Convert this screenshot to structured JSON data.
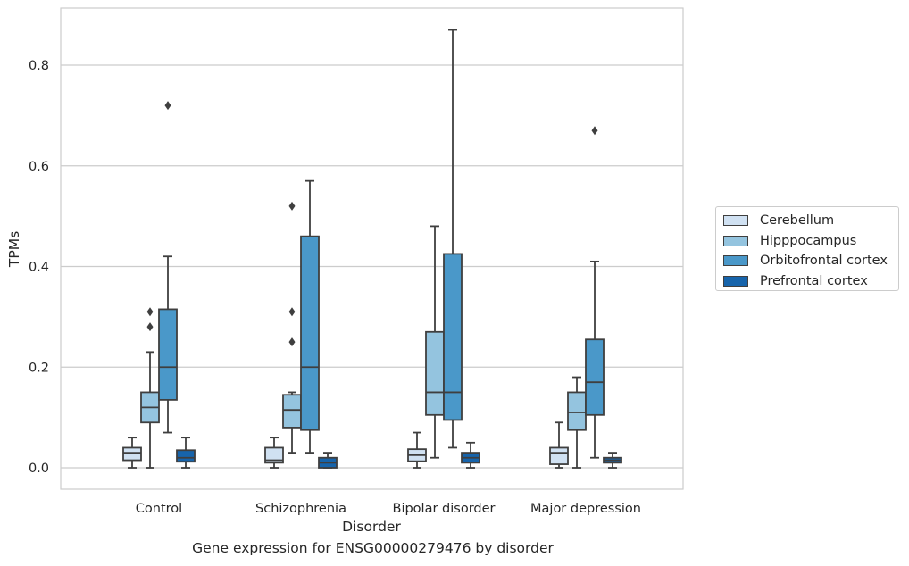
{
  "chart_data": {
    "type": "box",
    "title": "Gene expression for ENSG00000279476 by disorder",
    "xlabel": "Disorder",
    "ylabel": "TPMs",
    "ylim": [
      -0.042,
      0.92
    ],
    "yticks": [
      "0.0",
      "0.2",
      "0.4",
      "0.6",
      "0.8"
    ],
    "categories": [
      "Control",
      "Schizophrenia",
      "Bipolar disorder",
      "Major depression"
    ],
    "grid": "horizontal",
    "legend_position": "right",
    "series": [
      {
        "name": "Cerebellum",
        "color": "#d0e1f2",
        "boxes": [
          {
            "whisker_low": 0.0,
            "q1": 0.015,
            "median": 0.03,
            "q3": 0.04,
            "whisker_high": 0.06,
            "outliers": []
          },
          {
            "whisker_low": 0.0,
            "q1": 0.01,
            "median": 0.015,
            "q3": 0.04,
            "whisker_high": 0.06,
            "outliers": []
          },
          {
            "whisker_low": 0.0,
            "q1": 0.013,
            "median": 0.025,
            "q3": 0.037,
            "whisker_high": 0.07,
            "outliers": []
          },
          {
            "whisker_low": 0.0,
            "q1": 0.007,
            "median": 0.03,
            "q3": 0.04,
            "whisker_high": 0.09,
            "outliers": []
          }
        ]
      },
      {
        "name": "Hipppocampus",
        "color": "#94c4df",
        "boxes": [
          {
            "whisker_low": 0.0,
            "q1": 0.09,
            "median": 0.12,
            "q3": 0.15,
            "whisker_high": 0.23,
            "outliers": [
              0.28,
              0.31
            ]
          },
          {
            "whisker_low": 0.03,
            "q1": 0.08,
            "median": 0.115,
            "q3": 0.145,
            "whisker_high": 0.15,
            "outliers": [
              0.25,
              0.31,
              0.52
            ]
          },
          {
            "whisker_low": 0.02,
            "q1": 0.105,
            "median": 0.15,
            "q3": 0.27,
            "whisker_high": 0.48,
            "outliers": []
          },
          {
            "whisker_low": 0.0,
            "q1": 0.075,
            "median": 0.11,
            "q3": 0.15,
            "whisker_high": 0.18,
            "outliers": []
          }
        ]
      },
      {
        "name": "Orbitofrontal cortex",
        "color": "#4a98c9",
        "boxes": [
          {
            "whisker_low": 0.07,
            "q1": 0.135,
            "median": 0.2,
            "q3": 0.315,
            "whisker_high": 0.42,
            "outliers": [
              0.72
            ]
          },
          {
            "whisker_low": 0.03,
            "q1": 0.075,
            "median": 0.2,
            "q3": 0.46,
            "whisker_high": 0.57,
            "outliers": []
          },
          {
            "whisker_low": 0.04,
            "q1": 0.095,
            "median": 0.15,
            "q3": 0.425,
            "whisker_high": 0.87,
            "outliers": []
          },
          {
            "whisker_low": 0.02,
            "q1": 0.105,
            "median": 0.17,
            "q3": 0.255,
            "whisker_high": 0.41,
            "outliers": [
              0.67
            ]
          }
        ]
      },
      {
        "name": "Prefrontal cortex",
        "color": "#1764ab",
        "boxes": [
          {
            "whisker_low": 0.0,
            "q1": 0.012,
            "median": 0.02,
            "q3": 0.035,
            "whisker_high": 0.06,
            "outliers": []
          },
          {
            "whisker_low": 0.0,
            "q1": 0.0,
            "median": 0.01,
            "q3": 0.02,
            "whisker_high": 0.03,
            "outliers": []
          },
          {
            "whisker_low": 0.0,
            "q1": 0.01,
            "median": 0.02,
            "q3": 0.03,
            "whisker_high": 0.05,
            "outliers": []
          },
          {
            "whisker_low": 0.0,
            "q1": 0.01,
            "median": 0.015,
            "q3": 0.02,
            "whisker_high": 0.03,
            "outliers": []
          }
        ]
      }
    ]
  }
}
